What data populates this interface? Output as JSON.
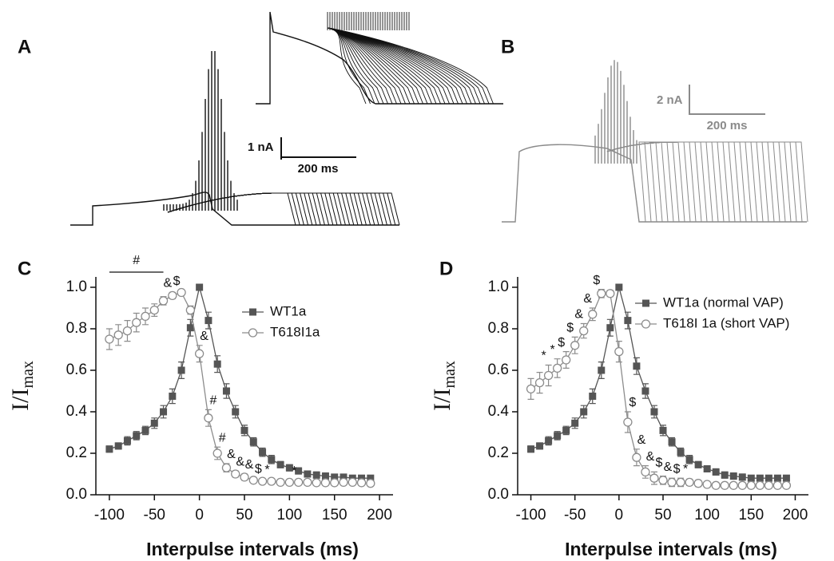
{
  "panels": [
    {
      "label": "A",
      "scale_bar": {
        "current": "1 nA",
        "time": "200 ms"
      }
    },
    {
      "label": "B",
      "scale_bar": {
        "current": "2 nA",
        "time": "200 ms"
      }
    }
  ],
  "chart_data": [
    {
      "type": "line",
      "panel_label": "C",
      "x": [
        -100,
        -90,
        -80,
        -70,
        -60,
        -50,
        -40,
        -30,
        -20,
        -10,
        0,
        10,
        20,
        30,
        40,
        50,
        60,
        70,
        80,
        90,
        100,
        110,
        120,
        130,
        140,
        150,
        160,
        170,
        180,
        190
      ],
      "xlim": [
        -115,
        215
      ],
      "xticks": [
        -100,
        -50,
        0,
        50,
        100,
        150,
        200
      ],
      "ylim": [
        0,
        1.05
      ],
      "yticks": [
        {
          "value": 0,
          "label": "0.0"
        },
        0.2,
        0.4,
        0.6,
        0.8,
        {
          "value": 1,
          "label": "1.0"
        }
      ],
      "xlabel": "Interpulse intervals (ms)",
      "ylabel": {
        "main": "I/I",
        "sub": "max"
      },
      "bracket": {
        "label": "#",
        "from": -100,
        "to": -40
      },
      "series": [
        {
          "name": "WT1a",
          "color": "#555555",
          "marker": "square",
          "values": [
            0.22,
            0.235,
            0.26,
            0.285,
            0.31,
            0.345,
            0.4,
            0.475,
            0.6,
            0.805,
            1.0,
            0.84,
            0.63,
            0.5,
            0.4,
            0.31,
            0.255,
            0.205,
            0.17,
            0.145,
            0.13,
            0.115,
            0.1,
            0.095,
            0.09,
            0.085,
            0.085,
            0.08,
            0.08,
            0.08
          ],
          "errors": [
            0.015,
            0.015,
            0.02,
            0.02,
            0.02,
            0.025,
            0.03,
            0.035,
            0.04,
            0.04,
            0,
            0.04,
            0.04,
            0.035,
            0.03,
            0.025,
            0.02,
            0.02,
            0.02,
            0.015,
            0.015,
            0.015,
            0.015,
            0.015,
            0.015,
            0.01,
            0.01,
            0.01,
            0.01,
            0.01
          ]
        },
        {
          "name": "T618I1a",
          "color": "#8c8c8c",
          "marker": "circle",
          "values": [
            0.75,
            0.77,
            0.79,
            0.83,
            0.86,
            0.89,
            0.935,
            0.96,
            0.975,
            0.89,
            0.68,
            0.37,
            0.2,
            0.13,
            0.1,
            0.085,
            0.07,
            0.065,
            0.065,
            0.06,
            0.06,
            0.06,
            0.06,
            0.058,
            0.058,
            0.058,
            0.06,
            0.06,
            0.058,
            0.055
          ],
          "errors": [
            0.05,
            0.05,
            0.05,
            0.045,
            0.04,
            0.03,
            0.02,
            0.015,
            0.01,
            0.02,
            0.04,
            0.04,
            0.03,
            0.02,
            0.015,
            0.015,
            0.01,
            0.01,
            0.01,
            0.01,
            0.01,
            0.01,
            0.01,
            0.01,
            0.01,
            0.01,
            0.01,
            0.01,
            0.01,
            0.01
          ],
          "sig_labels": [
            null,
            null,
            null,
            null,
            null,
            null,
            null,
            "&",
            "$",
            null,
            "&",
            "#",
            "#",
            "&",
            "&",
            "&",
            "$",
            "*",
            null,
            null,
            "*",
            null,
            null,
            null,
            null,
            null,
            null,
            null,
            null,
            null
          ]
        }
      ]
    },
    {
      "type": "line",
      "panel_label": "D",
      "x": [
        -100,
        -90,
        -80,
        -70,
        -60,
        -50,
        -40,
        -30,
        -20,
        -10,
        0,
        10,
        20,
        30,
        40,
        50,
        60,
        70,
        80,
        90,
        100,
        110,
        120,
        130,
        140,
        150,
        160,
        170,
        180,
        190
      ],
      "xlim": [
        -115,
        215
      ],
      "xticks": [
        -100,
        -50,
        0,
        50,
        100,
        150,
        200
      ],
      "ylim": [
        0,
        1.05
      ],
      "yticks": [
        {
          "value": 0,
          "label": "0.0"
        },
        0.2,
        0.4,
        0.6,
        0.8,
        {
          "value": 1,
          "label": "1.0"
        }
      ],
      "xlabel": "Interpulse intervals (ms)",
      "ylabel": {
        "main": "I/I",
        "sub": "max"
      },
      "series": [
        {
          "name": "WT1a (normal VAP)",
          "color": "#555555",
          "marker": "square",
          "values": [
            0.22,
            0.235,
            0.26,
            0.285,
            0.31,
            0.345,
            0.4,
            0.475,
            0.6,
            0.805,
            1.0,
            0.84,
            0.62,
            0.5,
            0.4,
            0.31,
            0.255,
            0.205,
            0.17,
            0.145,
            0.125,
            0.11,
            0.095,
            0.09,
            0.085,
            0.08,
            0.08,
            0.08,
            0.08,
            0.08
          ],
          "errors": [
            0.015,
            0.015,
            0.02,
            0.02,
            0.02,
            0.025,
            0.03,
            0.035,
            0.04,
            0.04,
            0,
            0.04,
            0.04,
            0.035,
            0.03,
            0.025,
            0.02,
            0.02,
            0.02,
            0.015,
            0.015,
            0.015,
            0.015,
            0.015,
            0.015,
            0.01,
            0.01,
            0.01,
            0.01,
            0.01
          ]
        },
        {
          "name": "T618I 1a (short VAP)",
          "color": "#8c8c8c",
          "marker": "circle",
          "values": [
            0.51,
            0.54,
            0.575,
            0.61,
            0.65,
            0.72,
            0.79,
            0.87,
            0.97,
            0.97,
            0.69,
            0.35,
            0.18,
            0.11,
            0.08,
            0.07,
            0.06,
            0.06,
            0.06,
            0.055,
            0.05,
            0.045,
            0.045,
            0.045,
            0.045,
            0.045,
            0.045,
            0.045,
            0.045,
            0.045
          ],
          "errors": [
            0.05,
            0.05,
            0.05,
            0.045,
            0.04,
            0.04,
            0.035,
            0.03,
            0.02,
            0.015,
            0.05,
            0.05,
            0.04,
            0.03,
            0.03,
            0.02,
            0.02,
            0.02,
            0.015,
            0.015,
            0.01,
            0.01,
            0.01,
            0.01,
            0.01,
            0.01,
            0.01,
            0.01,
            0.01,
            0.01
          ],
          "sig_labels": [
            null,
            null,
            "*",
            "*",
            "$",
            "$",
            "&",
            "&",
            "$",
            null,
            null,
            "$",
            "&",
            "&",
            "$",
            "&",
            "$",
            "*",
            null,
            null,
            null,
            null,
            null,
            null,
            null,
            null,
            null,
            null,
            null,
            null
          ]
        }
      ]
    }
  ]
}
